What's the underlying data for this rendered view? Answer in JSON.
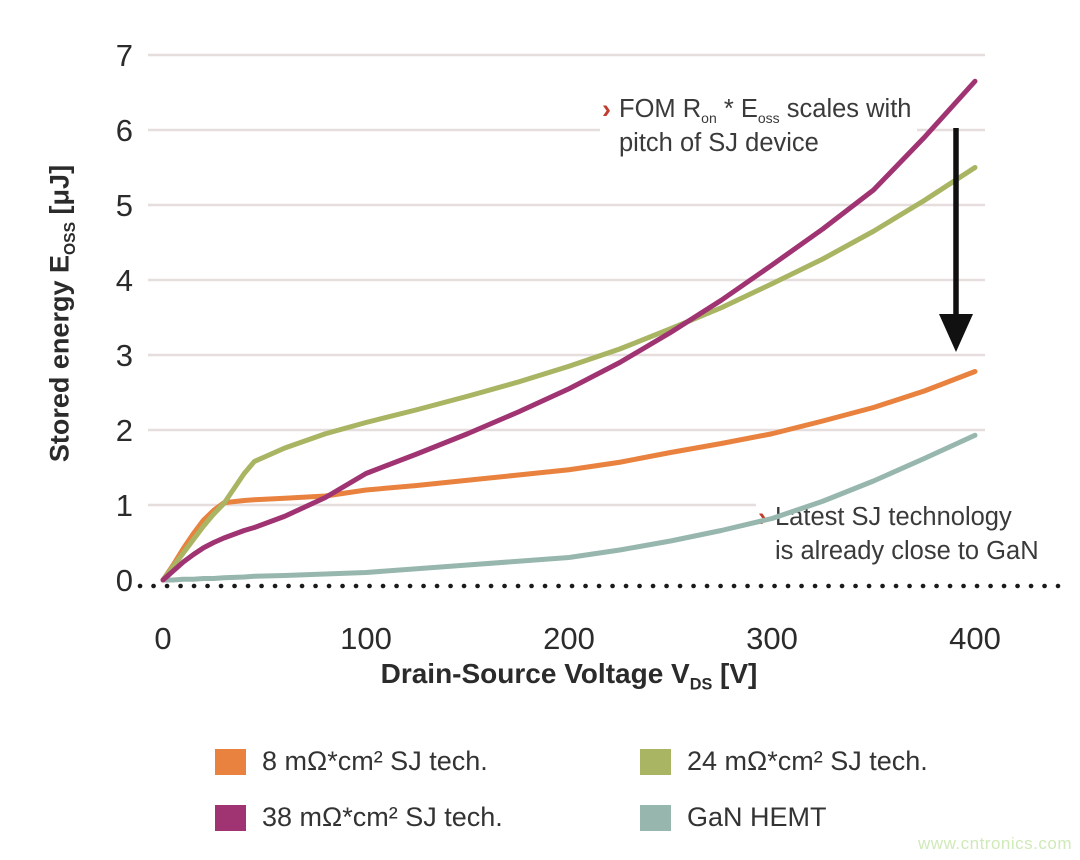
{
  "chart_data": {
    "type": "line",
    "title": "",
    "xlabel": {
      "text": "Drain-Source Voltage V",
      "sub": "DS",
      "unit": " [V]"
    },
    "ylabel": {
      "text": "Stored energy E",
      "sub": "OSS",
      "unit": " [μJ]"
    },
    "xlim": [
      0,
      400
    ],
    "ylim": [
      0,
      7
    ],
    "x_ticks": [
      0,
      100,
      200,
      300,
      400
    ],
    "y_ticks": [
      0,
      1,
      2,
      3,
      4,
      5,
      6,
      7
    ],
    "grid": "horizontal-only",
    "zero_line": "dotted",
    "legend_position": "bottom",
    "x": [
      0,
      5,
      10,
      15,
      20,
      25,
      30,
      40,
      45,
      60,
      80,
      100,
      125,
      150,
      175,
      200,
      225,
      250,
      275,
      300,
      325,
      350,
      375,
      400
    ],
    "series": [
      {
        "name": "8 mΩ*cm² SJ tech.",
        "color": "#E8823E",
        "values": [
          0,
          0.2,
          0.42,
          0.62,
          0.8,
          0.93,
          1.03,
          1.06,
          1.07,
          1.09,
          1.12,
          1.2,
          1.26,
          1.33,
          1.4,
          1.47,
          1.57,
          1.7,
          1.82,
          1.95,
          2.12,
          2.3,
          2.52,
          2.78
        ]
      },
      {
        "name": "24 mΩ*cm² SJ tech.",
        "color": "#A9B563",
        "values": [
          0,
          0.18,
          0.36,
          0.54,
          0.72,
          0.88,
          1.02,
          1.42,
          1.58,
          1.76,
          1.95,
          2.1,
          2.27,
          2.45,
          2.64,
          2.85,
          3.08,
          3.35,
          3.63,
          3.95,
          4.28,
          4.65,
          5.06,
          5.5
        ]
      },
      {
        "name": "38 mΩ*cm² SJ tech.",
        "color": "#A03472",
        "values": [
          0,
          0.12,
          0.24,
          0.34,
          0.43,
          0.5,
          0.56,
          0.66,
          0.7,
          0.85,
          1.1,
          1.42,
          1.68,
          1.95,
          2.24,
          2.55,
          2.9,
          3.3,
          3.73,
          4.2,
          4.68,
          5.2,
          5.9,
          6.65
        ]
      },
      {
        "name": "GaN HEMT",
        "color": "#97B7AE",
        "values": [
          0,
          0.0,
          0.01,
          0.01,
          0.02,
          0.02,
          0.03,
          0.04,
          0.05,
          0.06,
          0.08,
          0.1,
          0.15,
          0.2,
          0.25,
          0.3,
          0.4,
          0.52,
          0.66,
          0.82,
          1.05,
          1.32,
          1.62,
          1.93
        ]
      }
    ],
    "annotations": [
      {
        "chevron": "›",
        "l1a": "FOM R",
        "l1b": "on",
        "l1c": " * E",
        "l1d": "oss",
        "l1e": " scales with",
        "line2": "pitch of SJ device"
      },
      {
        "chevron": "›",
        "line1": "Latest SJ technology",
        "line2": "is already close to GaN"
      }
    ],
    "arrow": {
      "direction": "down"
    }
  },
  "legend": {
    "items": [
      {
        "label": "8 mΩ*cm² SJ tech.",
        "color": "#E8823E"
      },
      {
        "label": "24 mΩ*cm² SJ tech.",
        "color": "#A9B563"
      },
      {
        "label": "38 mΩ*cm² SJ tech.",
        "color": "#A03472"
      },
      {
        "label": "GaN HEMT",
        "color": "#97B7AE"
      }
    ]
  },
  "watermark": "www.cntronics.com",
  "colors": {
    "grid": "#E6DEDD",
    "zero_line": "#1A1A1A",
    "annotation_chevron": "#C23B2E",
    "text": "#3A3A3A",
    "tick": "#2B2B2B",
    "arrow": "#111111",
    "watermark": "#CFEAB8",
    "background": "#FFFFFF"
  }
}
